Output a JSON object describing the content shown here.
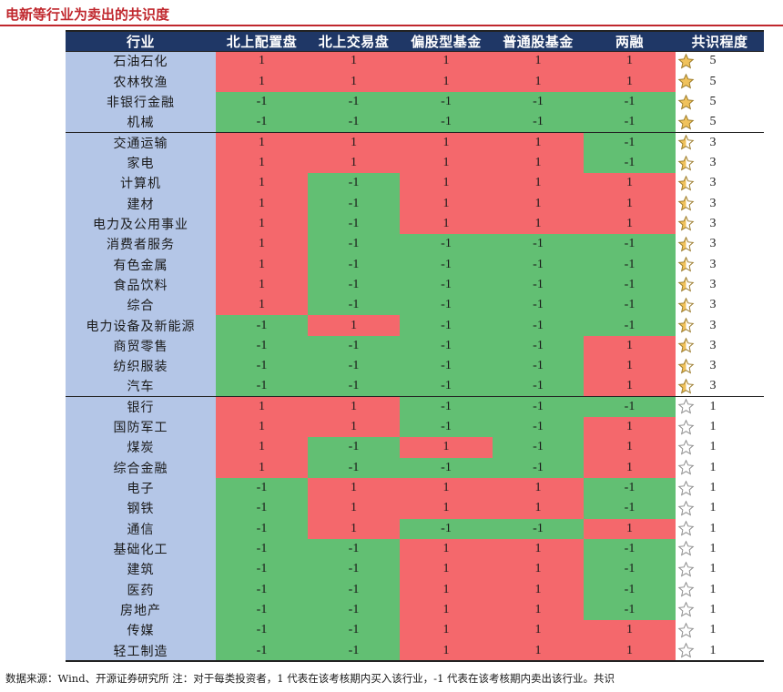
{
  "page": {
    "title": "电新等行业为卖出的共识度",
    "footnote": "数据来源：Wind、开源证券研究所  注：对于每类投资者，1 代表在该考核期内买入该行业，-1 代表在该考核期内卖出该行业。共识"
  },
  "colors": {
    "buy": "#f4686c",
    "sell": "#62bf73",
    "header_bg": "#1f3766",
    "name_bg": "#b4c6e7",
    "star_gold": "#f0c25c",
    "title": "#c0272d"
  },
  "chart_data": {
    "type": "table",
    "columns": [
      "行业",
      "北上配置盘",
      "北上交易盘",
      "偏股型基金",
      "普通股基金",
      "两融",
      "共识程度"
    ],
    "star_icons": {
      "5": "full-star-icon",
      "3": "half-star-icon",
      "1": "empty-star-icon"
    },
    "groups": [
      {
        "consensus": 5,
        "rows": [
          {
            "industry": "石油石化",
            "values": [
              1,
              1,
              1,
              1,
              1
            ],
            "consensus": 5
          },
          {
            "industry": "农林牧渔",
            "values": [
              1,
              1,
              1,
              1,
              1
            ],
            "consensus": 5
          },
          {
            "industry": "非银行金融",
            "values": [
              -1,
              -1,
              -1,
              -1,
              -1
            ],
            "consensus": 5
          },
          {
            "industry": "机械",
            "values": [
              -1,
              -1,
              -1,
              -1,
              -1
            ],
            "consensus": 5
          }
        ]
      },
      {
        "consensus": 3,
        "rows": [
          {
            "industry": "交通运输",
            "values": [
              1,
              1,
              1,
              1,
              -1
            ],
            "consensus": 3
          },
          {
            "industry": "家电",
            "values": [
              1,
              1,
              1,
              1,
              -1
            ],
            "consensus": 3
          },
          {
            "industry": "计算机",
            "values": [
              1,
              -1,
              1,
              1,
              1
            ],
            "consensus": 3
          },
          {
            "industry": "建材",
            "values": [
              1,
              -1,
              1,
              1,
              1
            ],
            "consensus": 3
          },
          {
            "industry": "电力及公用事业",
            "values": [
              1,
              -1,
              1,
              1,
              1
            ],
            "consensus": 3
          },
          {
            "industry": "消费者服务",
            "values": [
              1,
              -1,
              -1,
              -1,
              -1
            ],
            "consensus": 3
          },
          {
            "industry": "有色金属",
            "values": [
              1,
              -1,
              -1,
              -1,
              -1
            ],
            "consensus": 3
          },
          {
            "industry": "食品饮料",
            "values": [
              1,
              -1,
              -1,
              -1,
              -1
            ],
            "consensus": 3
          },
          {
            "industry": "综合",
            "values": [
              1,
              -1,
              -1,
              -1,
              -1
            ],
            "consensus": 3
          },
          {
            "industry": "电力设备及新能源",
            "values": [
              -1,
              1,
              -1,
              -1,
              -1
            ],
            "consensus": 3
          },
          {
            "industry": "商贸零售",
            "values": [
              -1,
              -1,
              -1,
              -1,
              1
            ],
            "consensus": 3
          },
          {
            "industry": "纺织服装",
            "values": [
              -1,
              -1,
              -1,
              -1,
              1
            ],
            "consensus": 3
          },
          {
            "industry": "汽车",
            "values": [
              -1,
              -1,
              -1,
              -1,
              1
            ],
            "consensus": 3
          }
        ]
      },
      {
        "consensus": 1,
        "rows": [
          {
            "industry": "银行",
            "values": [
              1,
              1,
              -1,
              -1,
              -1
            ],
            "consensus": 1
          },
          {
            "industry": "国防军工",
            "values": [
              1,
              1,
              -1,
              -1,
              1
            ],
            "consensus": 1
          },
          {
            "industry": "煤炭",
            "values": [
              1,
              -1,
              1,
              -1,
              1
            ],
            "consensus": 1
          },
          {
            "industry": "综合金融",
            "values": [
              1,
              -1,
              -1,
              -1,
              1
            ],
            "consensus": 1
          },
          {
            "industry": "电子",
            "values": [
              -1,
              1,
              1,
              1,
              -1
            ],
            "consensus": 1
          },
          {
            "industry": "钢铁",
            "values": [
              -1,
              1,
              1,
              1,
              -1
            ],
            "consensus": 1
          },
          {
            "industry": "通信",
            "values": [
              -1,
              1,
              -1,
              -1,
              1
            ],
            "consensus": 1
          },
          {
            "industry": "基础化工",
            "values": [
              -1,
              -1,
              1,
              1,
              -1
            ],
            "consensus": 1
          },
          {
            "industry": "建筑",
            "values": [
              -1,
              -1,
              1,
              1,
              -1
            ],
            "consensus": 1
          },
          {
            "industry": "医药",
            "values": [
              -1,
              -1,
              1,
              1,
              -1
            ],
            "consensus": 1
          },
          {
            "industry": "房地产",
            "values": [
              -1,
              -1,
              1,
              1,
              -1
            ],
            "consensus": 1
          },
          {
            "industry": "传媒",
            "values": [
              -1,
              -1,
              1,
              1,
              1
            ],
            "consensus": 1
          },
          {
            "industry": "轻工制造",
            "values": [
              -1,
              -1,
              1,
              1,
              1
            ],
            "consensus": 1
          }
        ]
      }
    ]
  }
}
